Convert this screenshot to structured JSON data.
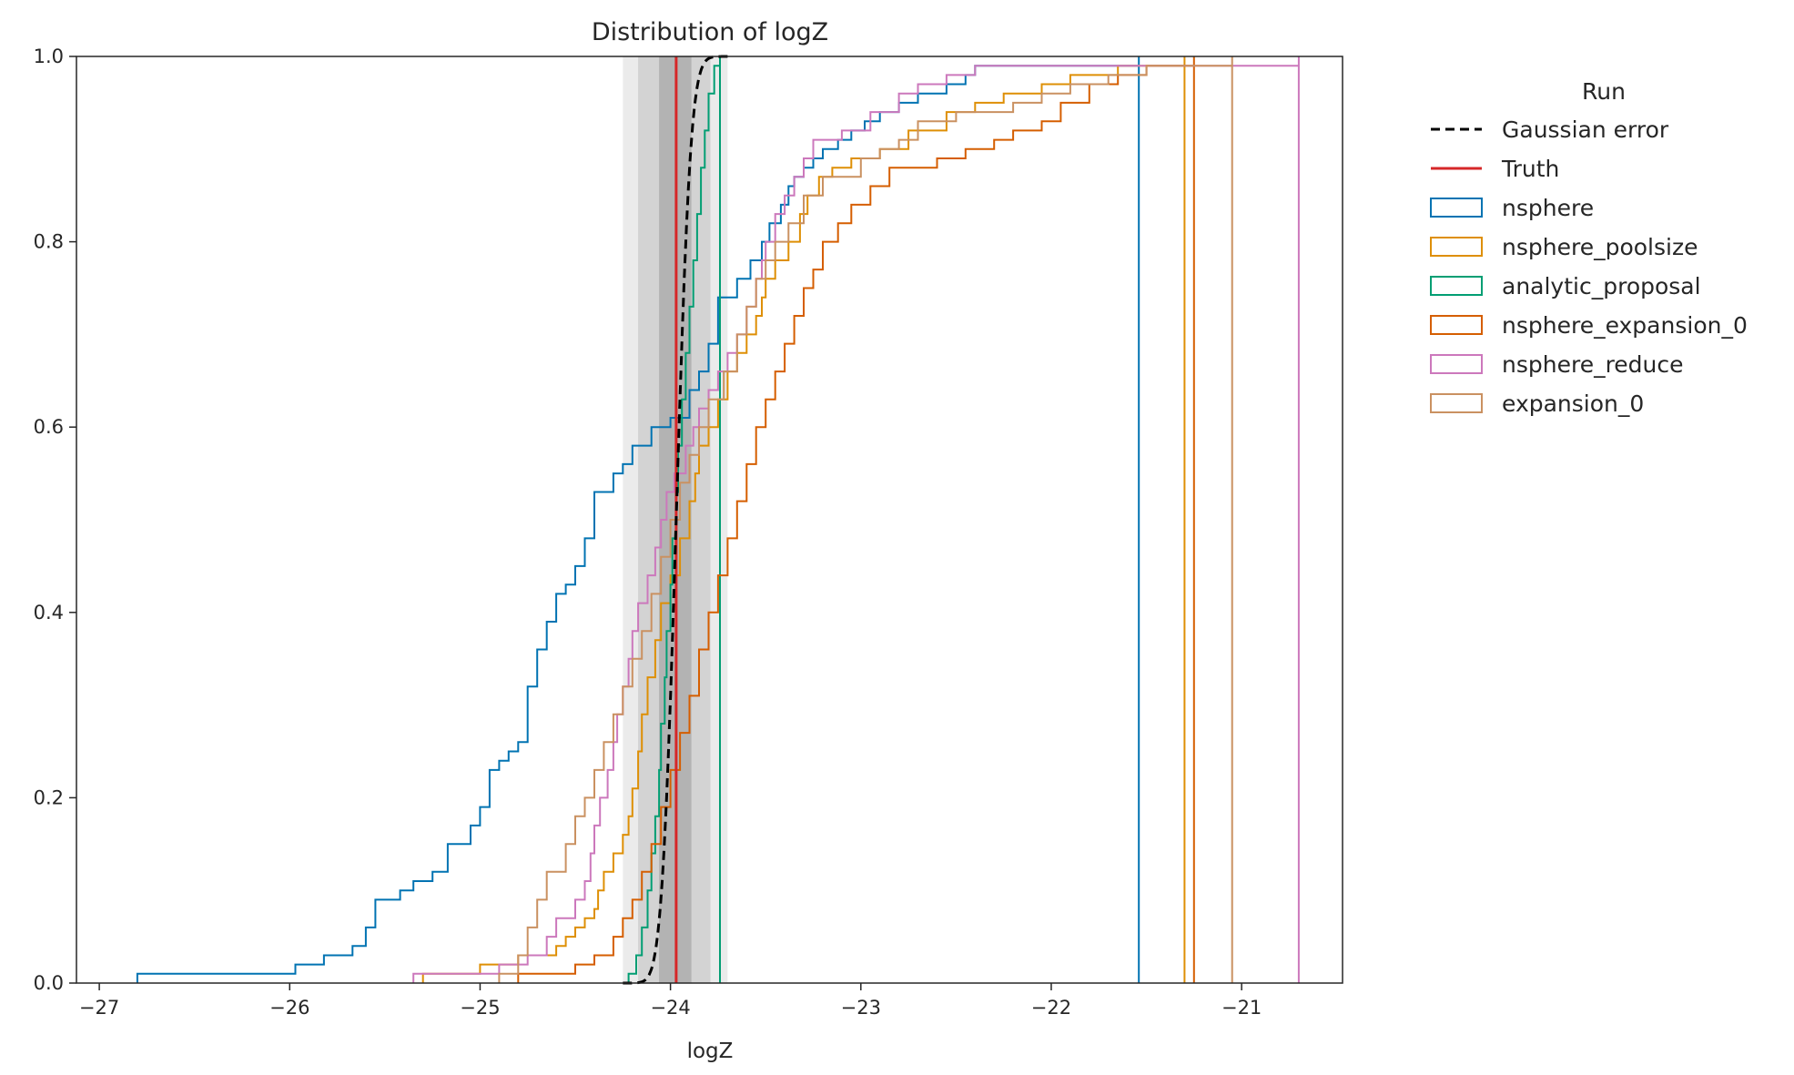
{
  "chart_data": {
    "type": "line",
    "title": "Distribution of logZ",
    "xlabel": "logZ",
    "ylabel": "",
    "xlim": [
      -27.12,
      -20.47
    ],
    "ylim": [
      0,
      1
    ],
    "xticks": [
      -27,
      -26,
      -25,
      -24,
      -23,
      -22,
      -21
    ],
    "xtick_labels": [
      "−27",
      "−26",
      "−25",
      "−24",
      "−23",
      "−22",
      "−21"
    ],
    "yticks": [
      0,
      0.2,
      0.4,
      0.6,
      0.8,
      1.0
    ],
    "ytick_labels": [
      "0.0",
      "0.2",
      "0.4",
      "0.6",
      "0.8",
      "1.0"
    ],
    "grid": false,
    "legend": {
      "title": "Run",
      "placement": "outside right"
    },
    "truth": {
      "name": "Truth",
      "x": -23.97,
      "color": "#d62728"
    },
    "uncertainty_bands": [
      {
        "x0": -24.25,
        "x1": -23.7,
        "opacity": 0.08
      },
      {
        "x0": -24.17,
        "x1": -23.79,
        "opacity": 0.1
      },
      {
        "x0": -24.06,
        "x1": -23.89,
        "opacity": 0.15
      }
    ],
    "gaussian": {
      "name": "Gaussian error",
      "mean": -23.97,
      "sd": 0.06,
      "x_range": [
        -24.25,
        -23.7
      ],
      "color": "#000000"
    },
    "series": [
      {
        "name": "nsphere",
        "color": "#0173b2",
        "points": [
          [
            -26.8,
            0.01
          ],
          [
            -25.97,
            0.02
          ],
          [
            -25.82,
            0.03
          ],
          [
            -25.67,
            0.04
          ],
          [
            -25.6,
            0.06
          ],
          [
            -25.55,
            0.09
          ],
          [
            -25.42,
            0.1
          ],
          [
            -25.35,
            0.11
          ],
          [
            -25.25,
            0.12
          ],
          [
            -25.17,
            0.15
          ],
          [
            -25.05,
            0.17
          ],
          [
            -25.0,
            0.19
          ],
          [
            -24.95,
            0.23
          ],
          [
            -24.9,
            0.24
          ],
          [
            -24.85,
            0.25
          ],
          [
            -24.8,
            0.26
          ],
          [
            -24.75,
            0.32
          ],
          [
            -24.7,
            0.36
          ],
          [
            -24.65,
            0.39
          ],
          [
            -24.6,
            0.42
          ],
          [
            -24.55,
            0.43
          ],
          [
            -24.5,
            0.45
          ],
          [
            -24.45,
            0.48
          ],
          [
            -24.4,
            0.53
          ],
          [
            -24.3,
            0.55
          ],
          [
            -24.25,
            0.56
          ],
          [
            -24.2,
            0.58
          ],
          [
            -24.1,
            0.6
          ],
          [
            -24.0,
            0.61
          ],
          [
            -23.9,
            0.64
          ],
          [
            -23.85,
            0.66
          ],
          [
            -23.8,
            0.69
          ],
          [
            -23.75,
            0.74
          ],
          [
            -23.65,
            0.76
          ],
          [
            -23.58,
            0.78
          ],
          [
            -23.52,
            0.8
          ],
          [
            -23.48,
            0.82
          ],
          [
            -23.42,
            0.84
          ],
          [
            -23.38,
            0.86
          ],
          [
            -23.35,
            0.87
          ],
          [
            -23.3,
            0.88
          ],
          [
            -23.25,
            0.89
          ],
          [
            -23.2,
            0.9
          ],
          [
            -23.12,
            0.91
          ],
          [
            -23.05,
            0.92
          ],
          [
            -22.98,
            0.93
          ],
          [
            -22.9,
            0.94
          ],
          [
            -22.8,
            0.95
          ],
          [
            -22.7,
            0.96
          ],
          [
            -22.55,
            0.97
          ],
          [
            -22.45,
            0.98
          ],
          [
            -22.4,
            0.99
          ],
          [
            -21.54,
            1.0
          ]
        ]
      },
      {
        "name": "nsphere_poolsize",
        "color": "#de8f05",
        "points": [
          [
            -25.3,
            0.01
          ],
          [
            -25.0,
            0.02
          ],
          [
            -24.8,
            0.03
          ],
          [
            -24.6,
            0.04
          ],
          [
            -24.55,
            0.05
          ],
          [
            -24.5,
            0.06
          ],
          [
            -24.45,
            0.07
          ],
          [
            -24.4,
            0.08
          ],
          [
            -24.38,
            0.1
          ],
          [
            -24.35,
            0.12
          ],
          [
            -24.3,
            0.14
          ],
          [
            -24.25,
            0.16
          ],
          [
            -24.22,
            0.18
          ],
          [
            -24.2,
            0.21
          ],
          [
            -24.17,
            0.25
          ],
          [
            -24.15,
            0.29
          ],
          [
            -24.12,
            0.33
          ],
          [
            -24.08,
            0.37
          ],
          [
            -24.05,
            0.41
          ],
          [
            -24.0,
            0.44
          ],
          [
            -23.95,
            0.48
          ],
          [
            -23.9,
            0.52
          ],
          [
            -23.87,
            0.55
          ],
          [
            -23.85,
            0.58
          ],
          [
            -23.8,
            0.6
          ],
          [
            -23.75,
            0.63
          ],
          [
            -23.7,
            0.66
          ],
          [
            -23.65,
            0.68
          ],
          [
            -23.6,
            0.7
          ],
          [
            -23.55,
            0.72
          ],
          [
            -23.52,
            0.74
          ],
          [
            -23.5,
            0.76
          ],
          [
            -23.45,
            0.78
          ],
          [
            -23.38,
            0.8
          ],
          [
            -23.32,
            0.83
          ],
          [
            -23.28,
            0.85
          ],
          [
            -23.22,
            0.87
          ],
          [
            -23.15,
            0.88
          ],
          [
            -23.05,
            0.89
          ],
          [
            -22.9,
            0.9
          ],
          [
            -22.75,
            0.92
          ],
          [
            -22.55,
            0.94
          ],
          [
            -22.4,
            0.95
          ],
          [
            -22.25,
            0.96
          ],
          [
            -22.05,
            0.97
          ],
          [
            -21.9,
            0.98
          ],
          [
            -21.65,
            0.99
          ],
          [
            -21.3,
            1.0
          ]
        ]
      },
      {
        "name": "analytic_proposal",
        "color": "#029e73",
        "points": [
          [
            -24.22,
            0.01
          ],
          [
            -24.18,
            0.03
          ],
          [
            -24.15,
            0.06
          ],
          [
            -24.12,
            0.1
          ],
          [
            -24.1,
            0.14
          ],
          [
            -24.08,
            0.18
          ],
          [
            -24.06,
            0.23
          ],
          [
            -24.05,
            0.28
          ],
          [
            -24.03,
            0.33
          ],
          [
            -24.02,
            0.38
          ],
          [
            -24.0,
            0.43
          ],
          [
            -23.99,
            0.48
          ],
          [
            -23.97,
            0.53
          ],
          [
            -23.96,
            0.58
          ],
          [
            -23.94,
            0.63
          ],
          [
            -23.92,
            0.68
          ],
          [
            -23.9,
            0.73
          ],
          [
            -23.88,
            0.78
          ],
          [
            -23.86,
            0.83
          ],
          [
            -23.84,
            0.88
          ],
          [
            -23.82,
            0.92
          ],
          [
            -23.8,
            0.96
          ],
          [
            -23.77,
            0.99
          ],
          [
            -23.74,
            1.0
          ]
        ]
      },
      {
        "name": "nsphere_expansion_0",
        "color": "#d55e00",
        "points": [
          [
            -24.8,
            0.01
          ],
          [
            -24.5,
            0.02
          ],
          [
            -24.4,
            0.03
          ],
          [
            -24.3,
            0.05
          ],
          [
            -24.25,
            0.07
          ],
          [
            -24.2,
            0.09
          ],
          [
            -24.15,
            0.12
          ],
          [
            -24.1,
            0.15
          ],
          [
            -24.05,
            0.19
          ],
          [
            -24.0,
            0.23
          ],
          [
            -23.95,
            0.27
          ],
          [
            -23.9,
            0.31
          ],
          [
            -23.85,
            0.36
          ],
          [
            -23.8,
            0.4
          ],
          [
            -23.75,
            0.44
          ],
          [
            -23.7,
            0.48
          ],
          [
            -23.65,
            0.52
          ],
          [
            -23.6,
            0.56
          ],
          [
            -23.55,
            0.6
          ],
          [
            -23.5,
            0.63
          ],
          [
            -23.45,
            0.66
          ],
          [
            -23.4,
            0.69
          ],
          [
            -23.35,
            0.72
          ],
          [
            -23.3,
            0.75
          ],
          [
            -23.25,
            0.77
          ],
          [
            -23.2,
            0.8
          ],
          [
            -23.12,
            0.82
          ],
          [
            -23.05,
            0.84
          ],
          [
            -22.95,
            0.86
          ],
          [
            -22.85,
            0.88
          ],
          [
            -22.6,
            0.89
          ],
          [
            -22.45,
            0.9
          ],
          [
            -22.3,
            0.91
          ],
          [
            -22.2,
            0.92
          ],
          [
            -22.05,
            0.93
          ],
          [
            -21.95,
            0.95
          ],
          [
            -21.8,
            0.97
          ],
          [
            -21.65,
            0.98
          ],
          [
            -21.5,
            0.99
          ],
          [
            -21.25,
            1.0
          ]
        ]
      },
      {
        "name": "nsphere_reduce",
        "color": "#cc78bc",
        "points": [
          [
            -25.35,
            0.01
          ],
          [
            -24.9,
            0.02
          ],
          [
            -24.75,
            0.03
          ],
          [
            -24.65,
            0.05
          ],
          [
            -24.6,
            0.07
          ],
          [
            -24.5,
            0.09
          ],
          [
            -24.45,
            0.11
          ],
          [
            -24.42,
            0.14
          ],
          [
            -24.4,
            0.17
          ],
          [
            -24.37,
            0.2
          ],
          [
            -24.33,
            0.23
          ],
          [
            -24.3,
            0.26
          ],
          [
            -24.28,
            0.29
          ],
          [
            -24.25,
            0.32
          ],
          [
            -24.22,
            0.35
          ],
          [
            -24.2,
            0.38
          ],
          [
            -24.17,
            0.41
          ],
          [
            -24.12,
            0.44
          ],
          [
            -24.08,
            0.47
          ],
          [
            -24.05,
            0.5
          ],
          [
            -24.02,
            0.53
          ],
          [
            -23.98,
            0.55
          ],
          [
            -23.92,
            0.58
          ],
          [
            -23.88,
            0.6
          ],
          [
            -23.85,
            0.62
          ],
          [
            -23.8,
            0.64
          ],
          [
            -23.75,
            0.66
          ],
          [
            -23.7,
            0.68
          ],
          [
            -23.65,
            0.7
          ],
          [
            -23.6,
            0.73
          ],
          [
            -23.55,
            0.76
          ],
          [
            -23.52,
            0.78
          ],
          [
            -23.5,
            0.8
          ],
          [
            -23.45,
            0.83
          ],
          [
            -23.4,
            0.85
          ],
          [
            -23.35,
            0.87
          ],
          [
            -23.3,
            0.89
          ],
          [
            -23.25,
            0.91
          ],
          [
            -23.1,
            0.92
          ],
          [
            -22.95,
            0.94
          ],
          [
            -22.8,
            0.96
          ],
          [
            -22.7,
            0.97
          ],
          [
            -22.55,
            0.98
          ],
          [
            -22.4,
            0.99
          ],
          [
            -20.7,
            1.0
          ]
        ]
      },
      {
        "name": "expansion_0",
        "color": "#ca9161",
        "points": [
          [
            -24.9,
            0.01
          ],
          [
            -24.8,
            0.03
          ],
          [
            -24.75,
            0.06
          ],
          [
            -24.7,
            0.09
          ],
          [
            -24.65,
            0.12
          ],
          [
            -24.55,
            0.15
          ],
          [
            -24.5,
            0.18
          ],
          [
            -24.45,
            0.2
          ],
          [
            -24.4,
            0.23
          ],
          [
            -24.35,
            0.26
          ],
          [
            -24.3,
            0.29
          ],
          [
            -24.25,
            0.32
          ],
          [
            -24.2,
            0.35
          ],
          [
            -24.15,
            0.38
          ],
          [
            -24.1,
            0.42
          ],
          [
            -24.05,
            0.46
          ],
          [
            -24.0,
            0.5
          ],
          [
            -23.95,
            0.54
          ],
          [
            -23.9,
            0.57
          ],
          [
            -23.85,
            0.6
          ],
          [
            -23.8,
            0.63
          ],
          [
            -23.72,
            0.66
          ],
          [
            -23.65,
            0.7
          ],
          [
            -23.6,
            0.73
          ],
          [
            -23.55,
            0.76
          ],
          [
            -23.5,
            0.78
          ],
          [
            -23.45,
            0.8
          ],
          [
            -23.38,
            0.82
          ],
          [
            -23.3,
            0.85
          ],
          [
            -23.2,
            0.87
          ],
          [
            -23.0,
            0.89
          ],
          [
            -22.9,
            0.9
          ],
          [
            -22.8,
            0.91
          ],
          [
            -22.7,
            0.93
          ],
          [
            -22.5,
            0.94
          ],
          [
            -22.2,
            0.95
          ],
          [
            -22.05,
            0.96
          ],
          [
            -21.9,
            0.97
          ],
          [
            -21.7,
            0.98
          ],
          [
            -21.5,
            0.99
          ],
          [
            -21.05,
            1.0
          ]
        ]
      }
    ]
  }
}
